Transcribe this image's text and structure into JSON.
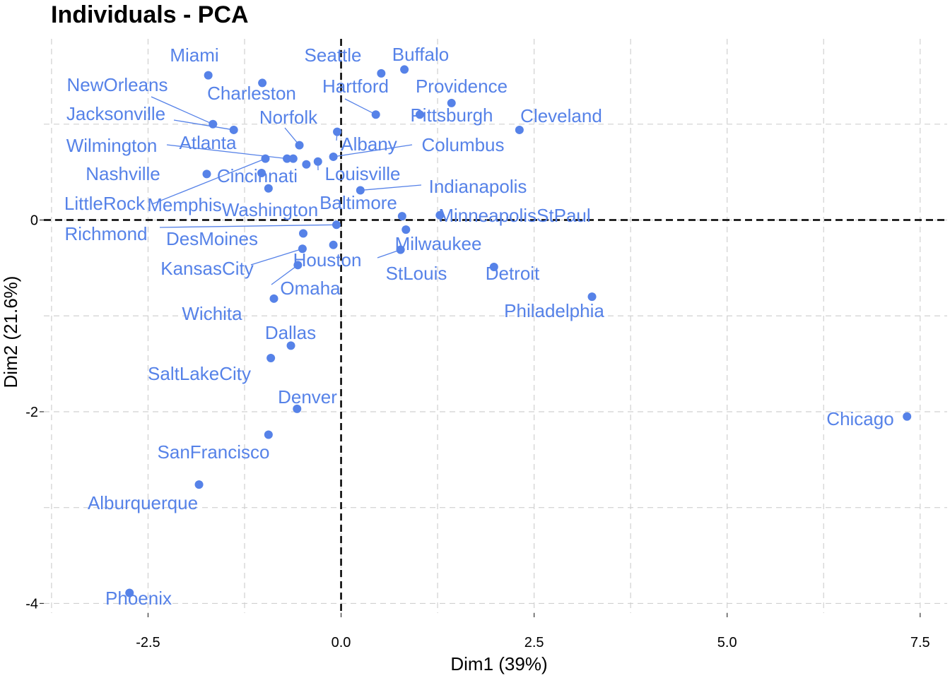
{
  "chart_data": {
    "type": "scatter",
    "title": "Individuals - PCA",
    "xlabel": "Dim1 (39%)",
    "ylabel": "Dim2 (21.6%)",
    "xlim": [
      -3.85,
      7.85
    ],
    "ylim": [
      -4.1,
      1.89
    ],
    "x_ticks": [
      -2.5,
      0.0,
      2.5,
      5.0,
      7.5
    ],
    "x_tick_labels": [
      "-2.5",
      "0.0",
      "2.5",
      "5.0",
      "7.5"
    ],
    "y_ticks": [
      0,
      -2,
      -4
    ],
    "y_tick_labels": [
      "0",
      "-2",
      "-4"
    ],
    "grid": true,
    "reference_lines": [
      {
        "axis": "x",
        "value": 0
      },
      {
        "axis": "y",
        "value": 0
      }
    ],
    "point_color": "#5682E8",
    "points": [
      {
        "label": "Miami",
        "x": -1.72,
        "y": 1.51
      },
      {
        "label": "Charleston",
        "x": -1.02,
        "y": 1.43
      },
      {
        "label": "NewOrleans",
        "x": -1.66,
        "y": 1.0
      },
      {
        "label": "Jacksonville",
        "x": -1.39,
        "y": 0.94
      },
      {
        "label": "Seattle",
        "x": 0.52,
        "y": 1.53
      },
      {
        "label": "Buffalo",
        "x": 0.82,
        "y": 1.57
      },
      {
        "label": "Hartford",
        "x": 0.45,
        "y": 1.1
      },
      {
        "label": "Providence",
        "x": 1.43,
        "y": 1.22
      },
      {
        "label": "Pittsburgh",
        "x": 1.02,
        "y": 1.1
      },
      {
        "label": "Cleveland",
        "x": 2.31,
        "y": 0.94
      },
      {
        "label": "Norfolk",
        "x": -0.54,
        "y": 0.78
      },
      {
        "label": "Albany",
        "x": -0.05,
        "y": 0.92
      },
      {
        "label": "Columbus",
        "x": -0.1,
        "y": 0.66
      },
      {
        "label": "Wilmington",
        "x": -0.7,
        "y": 0.64
      },
      {
        "label": "Atlanta",
        "x": -0.62,
        "y": 0.64
      },
      {
        "label": "Louisville",
        "x": -0.3,
        "y": 0.61
      },
      {
        "label": "Indianapolis",
        "x": 0.25,
        "y": 0.31
      },
      {
        "label": "Nashville",
        "x": -1.74,
        "y": 0.48
      },
      {
        "label": "Cincinnati",
        "x": -0.45,
        "y": 0.58
      },
      {
        "label": "LittleRock",
        "x": -0.98,
        "y": 0.64
      },
      {
        "label": "Memphis",
        "x": -1.03,
        "y": 0.49
      },
      {
        "label": "Washington",
        "x": -0.94,
        "y": 0.33
      },
      {
        "label": "Baltimore",
        "x": 0.79,
        "y": 0.04
      },
      {
        "label": "MinneapolisStPaul",
        "x": 1.28,
        "y": 0.05
      },
      {
        "label": "Richmond",
        "x": -0.06,
        "y": -0.05
      },
      {
        "label": "DesMoines",
        "x": -0.49,
        "y": -0.14
      },
      {
        "label": "Milwaukee",
        "x": 0.84,
        "y": -0.1
      },
      {
        "label": "Houston",
        "x": -0.1,
        "y": -0.26
      },
      {
        "label": "KansasCity",
        "x": -0.5,
        "y": -0.3
      },
      {
        "label": "StLouis",
        "x": 0.77,
        "y": -0.31
      },
      {
        "label": "Detroit",
        "x": 1.98,
        "y": -0.49
      },
      {
        "label": "Omaha",
        "x": -0.56,
        "y": -0.47
      },
      {
        "label": "Wichita",
        "x": -0.87,
        "y": -0.82
      },
      {
        "label": "Philadelphia",
        "x": 3.25,
        "y": -0.8
      },
      {
        "label": "Dallas",
        "x": -0.65,
        "y": -1.31
      },
      {
        "label": "SaltLakeCity",
        "x": -0.91,
        "y": -1.44
      },
      {
        "label": "Denver",
        "x": -0.57,
        "y": -1.97
      },
      {
        "label": "SanFrancisco",
        "x": -0.94,
        "y": -2.24
      },
      {
        "label": "Chicago",
        "x": 7.33,
        "y": -2.05
      },
      {
        "label": "Alburquerque",
        "x": -1.84,
        "y": -2.76
      },
      {
        "label": "Phoenix",
        "x": -2.74,
        "y": -3.89
      }
    ]
  }
}
